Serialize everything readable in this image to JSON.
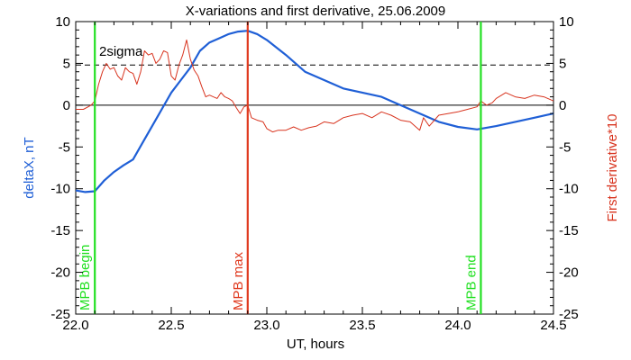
{
  "chart_data": {
    "type": "line",
    "title": "X-variations and first derivative, 25.06.2009",
    "xlabel": "UT, hours",
    "ylabel_left": "deltaX, nT",
    "ylabel_right": "First derivative*10",
    "xlim": [
      22.0,
      24.5
    ],
    "ylim": [
      -25,
      10
    ],
    "xticks": [
      "22.0",
      "22.5",
      "23.0",
      "23.5",
      "24.0",
      "24.5"
    ],
    "yticks_left": [
      "10",
      "5",
      "0",
      "-5",
      "-10",
      "-15",
      "-20",
      "-25"
    ],
    "yticks_right": [
      "10",
      "5",
      "0",
      "-5",
      "-10",
      "-15",
      "-20",
      "-25"
    ],
    "colors": {
      "deltaX": "#1f5fd6",
      "derivative": "#d8341f",
      "mpb_begin": "#22e022",
      "mpb_max": "#e03a1f",
      "mpb_end": "#22e022",
      "zero_line": "#000000",
      "sigma_line": "#000000"
    },
    "sigma_level": 4.8,
    "sigma_label": "2sigma",
    "vlines": [
      {
        "x": 22.1,
        "label": "MPB begin",
        "color": "#22e022"
      },
      {
        "x": 22.9,
        "label": "MPB max",
        "color": "#e03a1f"
      },
      {
        "x": 24.12,
        "label": "MPB end",
        "color": "#22e022"
      }
    ],
    "series": [
      {
        "name": "deltaX",
        "x": [
          22.0,
          22.05,
          22.1,
          22.15,
          22.2,
          22.25,
          22.3,
          22.35,
          22.4,
          22.45,
          22.5,
          22.55,
          22.6,
          22.65,
          22.7,
          22.75,
          22.8,
          22.85,
          22.9,
          22.95,
          23.0,
          23.1,
          23.2,
          23.3,
          23.4,
          23.5,
          23.6,
          23.7,
          23.8,
          23.9,
          24.0,
          24.1,
          24.2,
          24.3,
          24.4,
          24.5
        ],
        "values": [
          -10.2,
          -10.4,
          -10.3,
          -9.0,
          -8.0,
          -7.2,
          -6.5,
          -4.5,
          -2.5,
          -0.5,
          1.5,
          3.0,
          4.5,
          6.5,
          7.5,
          8.0,
          8.5,
          8.8,
          8.9,
          8.5,
          7.8,
          6.0,
          4.0,
          3.0,
          2.0,
          1.5,
          1.0,
          0.0,
          -1.0,
          -2.0,
          -2.6,
          -2.9,
          -2.5,
          -2.0,
          -1.5,
          -1.0
        ]
      },
      {
        "name": "derivative",
        "x": [
          22.0,
          22.04,
          22.08,
          22.1,
          22.12,
          22.14,
          22.16,
          22.18,
          22.2,
          22.22,
          22.24,
          22.26,
          22.28,
          22.3,
          22.32,
          22.34,
          22.36,
          22.38,
          22.4,
          22.42,
          22.44,
          22.46,
          22.48,
          22.5,
          22.52,
          22.54,
          22.56,
          22.58,
          22.6,
          22.62,
          22.64,
          22.66,
          22.68,
          22.7,
          22.72,
          22.74,
          22.76,
          22.78,
          22.8,
          22.82,
          22.84,
          22.86,
          22.88,
          22.9,
          22.92,
          22.95,
          22.98,
          23.0,
          23.03,
          23.06,
          23.1,
          23.14,
          23.18,
          23.22,
          23.26,
          23.3,
          23.35,
          23.4,
          23.45,
          23.5,
          23.55,
          23.6,
          23.65,
          23.7,
          23.75,
          23.8,
          23.82,
          23.85,
          23.9,
          23.95,
          24.0,
          24.05,
          24.1,
          24.12,
          24.15,
          24.18,
          24.2,
          24.25,
          24.3,
          24.35,
          24.4,
          24.45,
          24.5
        ],
        "values": [
          -0.5,
          -0.5,
          0.0,
          0.5,
          2.5,
          4.0,
          5.0,
          4.3,
          4.5,
          3.5,
          3.0,
          4.5,
          4.0,
          3.8,
          2.5,
          4.0,
          6.5,
          6.0,
          6.2,
          5.0,
          5.5,
          6.5,
          6.3,
          3.5,
          3.0,
          4.8,
          6.0,
          7.8,
          5.5,
          4.2,
          3.5,
          2.2,
          1.0,
          1.2,
          1.0,
          0.8,
          1.5,
          1.0,
          0.8,
          0.5,
          -0.3,
          -1.0,
          -0.2,
          0.0,
          -1.5,
          -1.8,
          -2.0,
          -2.8,
          -3.2,
          -3.0,
          -3.0,
          -2.6,
          -3.0,
          -2.7,
          -2.5,
          -2.0,
          -2.2,
          -1.5,
          -1.2,
          -1.0,
          -1.5,
          -0.8,
          -1.2,
          -1.8,
          -2.0,
          -3.0,
          -1.5,
          -2.5,
          -1.2,
          -1.0,
          -0.8,
          -0.5,
          -0.2,
          0.5,
          0.0,
          0.3,
          0.8,
          1.5,
          1.0,
          0.8,
          1.2,
          1.0,
          0.5
        ]
      }
    ]
  }
}
